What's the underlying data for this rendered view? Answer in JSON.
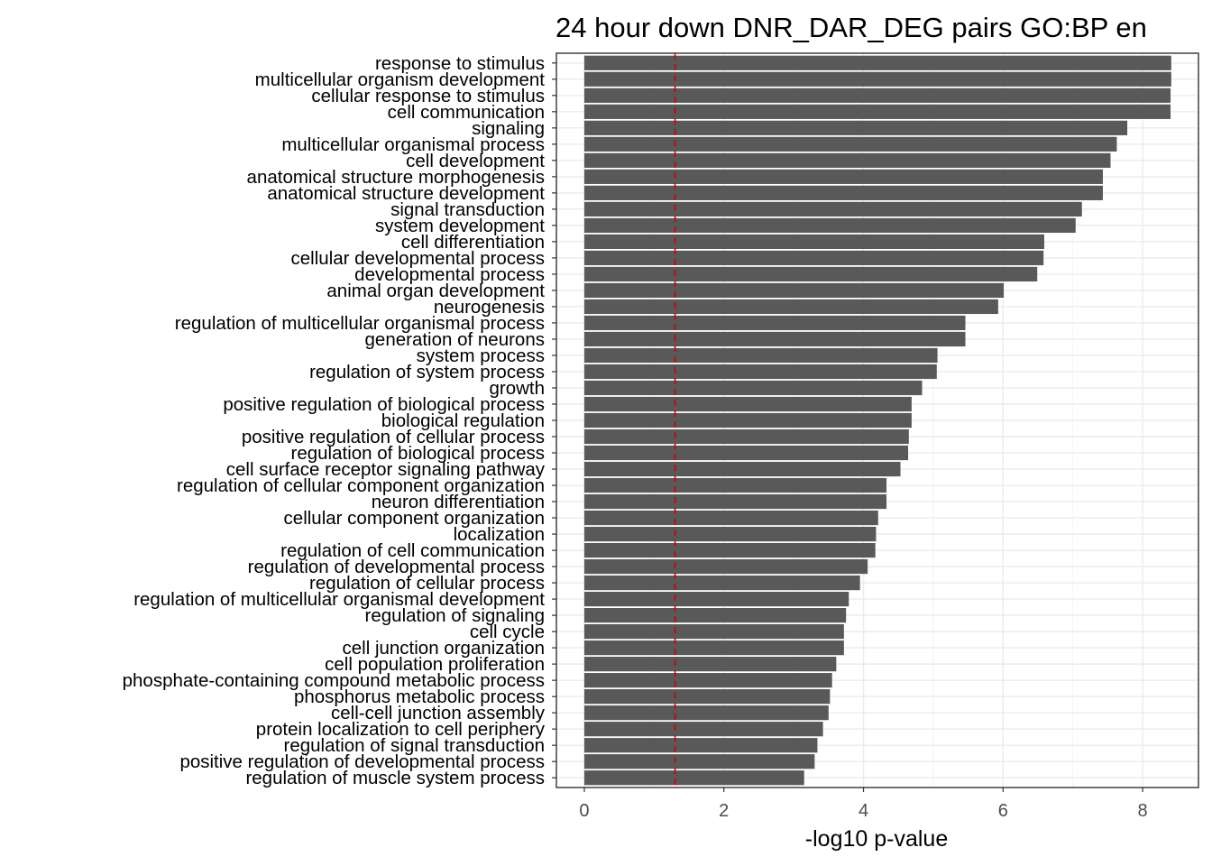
{
  "chart_data": {
    "type": "bar",
    "orientation": "horizontal",
    "title": "24 hour down DNR_DAR_DEG pairs GO:BP en",
    "xlabel": "-log10 p-value",
    "ylabel": "",
    "xlim": [
      -0.4,
      8.8
    ],
    "x_ticks": [
      "0",
      "2",
      "4",
      "6",
      "8"
    ],
    "x_tick_values": [
      0,
      2,
      4,
      6,
      8
    ],
    "grid": true,
    "legend": "none",
    "bar_color": "#595959",
    "threshold_line": {
      "value": 1.3,
      "color": "#cc0000",
      "style": "dashed"
    },
    "categories": [
      "response to stimulus",
      "multicellular organism development",
      "cellular response to stimulus",
      "cell communication",
      "signaling",
      "multicellular organismal process",
      "cell development",
      "anatomical structure morphogenesis",
      "anatomical structure development",
      "signal transduction",
      "system development",
      "cell differentiation",
      "cellular developmental process",
      "developmental process",
      "animal organ development",
      "neurogenesis",
      "regulation of multicellular organismal process",
      "generation of neurons",
      "system process",
      "regulation of system process",
      "growth",
      "positive regulation of biological process",
      "biological regulation",
      "positive regulation of cellular process",
      "regulation of biological process",
      "cell surface receptor signaling pathway",
      "regulation of cellular component organization",
      "neuron differentiation",
      "cellular component organization",
      "localization",
      "regulation of cell communication",
      "regulation of developmental process",
      "regulation of cellular process",
      "regulation of multicellular organismal development",
      "regulation of signaling",
      "cell cycle",
      "cell junction organization",
      "cell population proliferation",
      "phosphate-containing compound metabolic process",
      "phosphorus metabolic process",
      "cell-cell junction assembly",
      "protein localization to cell periphery",
      "regulation of signal transduction",
      "positive regulation of developmental process",
      "regulation of muscle system process"
    ],
    "values": [
      8.41,
      8.41,
      8.4,
      8.4,
      7.78,
      7.63,
      7.54,
      7.43,
      7.43,
      7.13,
      7.04,
      6.59,
      6.58,
      6.49,
      6.01,
      5.93,
      5.46,
      5.46,
      5.06,
      5.05,
      4.84,
      4.69,
      4.69,
      4.65,
      4.64,
      4.53,
      4.33,
      4.33,
      4.21,
      4.18,
      4.17,
      4.06,
      3.95,
      3.79,
      3.75,
      3.72,
      3.72,
      3.61,
      3.55,
      3.52,
      3.5,
      3.42,
      3.34,
      3.3,
      3.15
    ]
  }
}
